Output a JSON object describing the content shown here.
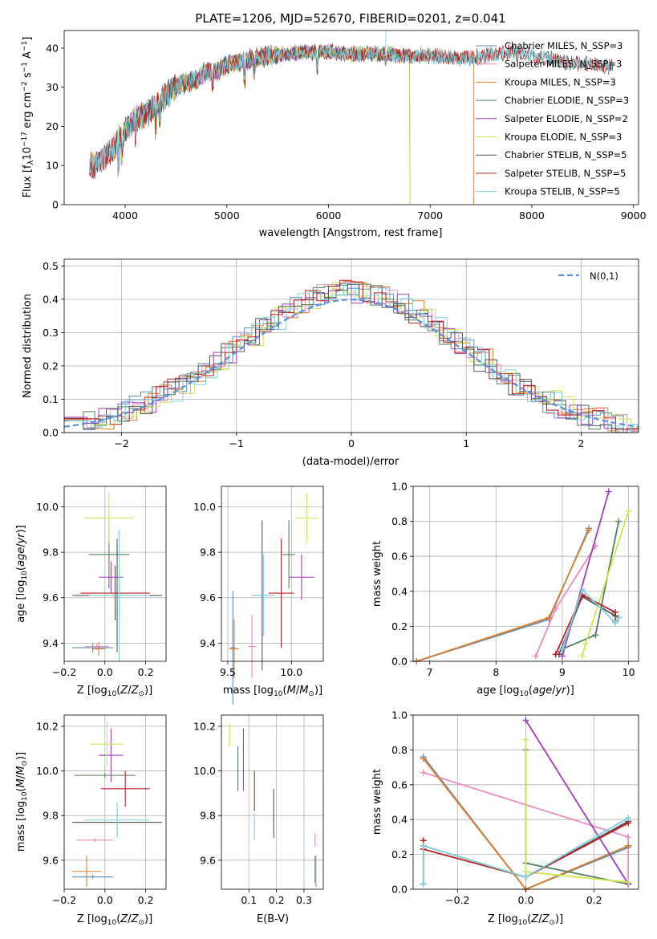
{
  "title": "PLATE=1206, MJD=52670, FIBERID=0201, z=0.041",
  "chart_data": [
    {
      "id": "spectrum",
      "type": "line",
      "xlabel": "wavelength [Angstrom, rest frame]",
      "ylabel": "Flux [f_λ 10^-17 erg cm^-2 s^-1 A^-1]",
      "xlim": [
        3400,
        9050
      ],
      "ylim": [
        0,
        44.5
      ],
      "xticks": [
        4000,
        5000,
        6000,
        7000,
        8000,
        9000
      ],
      "yticks": [
        0,
        10,
        20,
        30,
        40
      ],
      "grid": false,
      "legend_position": "right",
      "series": [
        {
          "name": "Chabrier MILES, N_SSP=3",
          "color": "#5b8db8",
          "x_range": [
            3650,
            7430
          ]
        },
        {
          "name": "Salpeter MILES, N_SSP=3",
          "color": "#e98dc0",
          "x_range": [
            3650,
            7430
          ]
        },
        {
          "name": "Kroupa MILES, N_SSP=3",
          "color": "#dd7f2c",
          "x_range": [
            3650,
            7430
          ]
        },
        {
          "name": "Chabrier ELODIE, N_SSP=3",
          "color": "#4f7f5f",
          "x_range": [
            3900,
            6800
          ]
        },
        {
          "name": "Salpeter ELODIE, N_SSP=2",
          "color": "#9d3fbf",
          "x_range": [
            3900,
            6800
          ]
        },
        {
          "name": "Kroupa ELODIE, N_SSP=3",
          "color": "#cfe551",
          "x_range": [
            3900,
            6800
          ]
        },
        {
          "name": "Chabrier STELIB, N_SSP=5",
          "color": "#555555",
          "x_range": [
            3650,
            8800
          ]
        },
        {
          "name": "Salpeter STELIB, N_SSP=5",
          "color": "#bb1f1f",
          "x_range": [
            3650,
            8800
          ]
        },
        {
          "name": "Kroupa STELIB, N_SSP=5",
          "color": "#7fd3df",
          "x_range": [
            3650,
            8800
          ]
        }
      ],
      "continuum": {
        "x": [
          3650,
          3700,
          3800,
          3900,
          4000,
          4100,
          4200,
          4300,
          4400,
          4500,
          4600,
          4700,
          4800,
          4900,
          5000,
          5200,
          5400,
          5600,
          5800,
          6000,
          6200,
          6400,
          6600,
          6800,
          7000,
          7200,
          7400,
          7600,
          7800,
          8000,
          8200,
          8400,
          8600,
          8800
        ],
        "y": [
          10,
          10,
          12,
          15,
          19,
          22,
          23,
          25,
          28,
          30,
          31,
          32,
          34,
          34,
          36,
          37,
          38,
          38.5,
          39,
          39,
          38.5,
          38.5,
          38.5,
          38,
          38,
          37.5,
          37.5,
          38,
          39,
          38,
          37,
          36,
          36,
          35
        ]
      }
    },
    {
      "id": "residuals",
      "type": "line",
      "xlabel": "(data-model)/error",
      "ylabel": "Normed distribution",
      "xlim": [
        -2.5,
        2.5
      ],
      "ylim": [
        0,
        0.52
      ],
      "xticks": [
        -2,
        -1,
        0,
        1,
        2
      ],
      "yticks": [
        0.0,
        0.1,
        0.2,
        0.3,
        0.4,
        0.5
      ],
      "grid": true,
      "legend_position": "top-right",
      "legend": "N(0,1)",
      "histogram_bin_width": 0.1,
      "histogram_envelope_peak": 0.42
    },
    {
      "id": "age-vs-Z",
      "type": "scatter",
      "xlabel": "Z [log10(Z/Z⊙)]",
      "ylabel": "age [log10(age/yr)]",
      "xlim": [
        -0.2,
        0.3
      ],
      "ylim": [
        9.32,
        10.09
      ],
      "xticks": [
        -0.2,
        0.0,
        0.2
      ],
      "yticks": [
        9.4,
        9.6,
        9.8,
        10.0
      ],
      "grid": true,
      "errorbars": [
        {
          "color": "#5b8db8",
          "x": -0.06,
          "y": 9.38,
          "xerr": 0.1,
          "yerr": 0.02
        },
        {
          "color": "#e98dc0",
          "x": -0.04,
          "y": 9.385,
          "xerr": 0.06,
          "yerr": 0.015
        },
        {
          "color": "#dd7f2c",
          "x": -0.03,
          "y": 9.375,
          "xerr": 0.03,
          "yerr": 0.03
        },
        {
          "color": "#4f7f5f",
          "x": 0.02,
          "y": 9.79,
          "xerr": 0.1,
          "yerr": 0.15
        },
        {
          "color": "#9d3fbf",
          "x": 0.03,
          "y": 9.69,
          "xerr": 0.06,
          "yerr": 0.07
        },
        {
          "color": "#cfe551",
          "x": 0.02,
          "y": 9.95,
          "xerr": 0.12,
          "yerr": 0.11
        },
        {
          "color": "#555555",
          "x": 0.06,
          "y": 9.61,
          "xerr": 0.22,
          "yerr": 0.25
        },
        {
          "color": "#bb1f1f",
          "x": 0.05,
          "y": 9.62,
          "xerr": 0.17,
          "yerr": 0.12
        },
        {
          "color": "#7fd3df",
          "x": 0.07,
          "y": 9.61,
          "xerr": 0.15,
          "yerr": 0.29
        }
      ]
    },
    {
      "id": "age-vs-mass",
      "type": "scatter",
      "xlabel": "mass [log10(M/M⊙)]",
      "xlim": [
        9.45,
        10.25
      ],
      "ylim": [
        9.32,
        10.09
      ],
      "xticks": [
        9.5,
        10.0
      ],
      "yticks": [
        9.4,
        9.6,
        9.8,
        10.0
      ],
      "grid": true,
      "errorbars": [
        {
          "color": "#5b8db8",
          "x": 9.54,
          "y": 9.38,
          "xerr": 0.02,
          "yerr": 0.25
        },
        {
          "color": "#e98dc0",
          "x": 9.69,
          "y": 9.385,
          "xerr": 0.03,
          "yerr": 0.14
        },
        {
          "color": "#dd7f2c",
          "x": 9.55,
          "y": 9.375,
          "xerr": 0.04,
          "yerr": 0.13
        },
        {
          "color": "#4f7f5f",
          "x": 9.98,
          "y": 9.79,
          "xerr": 0.05,
          "yerr": 0.15
        },
        {
          "color": "#9d3fbf",
          "x": 10.08,
          "y": 9.69,
          "xerr": 0.1,
          "yerr": 0.1
        },
        {
          "color": "#cfe551",
          "x": 10.12,
          "y": 9.95,
          "xerr": 0.09,
          "yerr": 0.11
        },
        {
          "color": "#555555",
          "x": 9.77,
          "y": 9.61,
          "xerr": 0.08,
          "yerr": 0.33
        },
        {
          "color": "#bb1f1f",
          "x": 9.92,
          "y": 9.62,
          "xerr": 0.1,
          "yerr": 0.24
        },
        {
          "color": "#7fd3df",
          "x": 9.78,
          "y": 9.61,
          "xerr": 0.09,
          "yerr": 0.18
        }
      ]
    },
    {
      "id": "weight-vs-age",
      "type": "line",
      "xlabel": "age [log10(age/yr)]",
      "ylabel": "mass weight",
      "xlim": [
        6.75,
        10.15
      ],
      "ylim": [
        0,
        1.0
      ],
      "xticks": [
        7,
        8,
        9,
        10
      ],
      "yticks": [
        0.0,
        0.2,
        0.4,
        0.6,
        0.8,
        1.0
      ],
      "grid": true,
      "series": [
        {
          "color": "#5b8db8",
          "x": [
            6.8,
            8.8,
            9.4
          ],
          "y": [
            0.0,
            0.24,
            0.76
          ]
        },
        {
          "color": "#e98dc0",
          "x": [
            8.6,
            8.9,
            9.5
          ],
          "y": [
            0.03,
            0.3,
            0.66
          ]
        },
        {
          "color": "#dd7f2c",
          "x": [
            6.8,
            8.8,
            9.4
          ],
          "y": [
            0.0,
            0.25,
            0.75
          ]
        },
        {
          "color": "#4f7f5f",
          "x": [
            9.0,
            9.5,
            9.85
          ],
          "y": [
            0.07,
            0.15,
            0.8
          ]
        },
        {
          "color": "#9d3fbf",
          "x": [
            9.0,
            9.7
          ],
          "y": [
            0.03,
            0.97
          ]
        },
        {
          "color": "#cfe551",
          "x": [
            9.3,
            9.35,
            10.0
          ],
          "y": [
            0.03,
            0.1,
            0.86
          ]
        },
        {
          "color": "#555555",
          "x": [
            8.95,
            9.3,
            9.8,
            9.85
          ],
          "y": [
            0.04,
            0.37,
            0.26,
            0.25
          ]
        },
        {
          "color": "#bb1f1f",
          "x": [
            8.9,
            9.3,
            9.8,
            9.8
          ],
          "y": [
            0.04,
            0.38,
            0.28,
            0.23
          ]
        },
        {
          "color": "#7fd3df",
          "x": [
            9.0,
            9.3,
            9.8,
            9.85
          ],
          "y": [
            0.07,
            0.41,
            0.22,
            0.25
          ]
        }
      ]
    },
    {
      "id": "mass-vs-Z",
      "type": "scatter",
      "xlabel": "Z [log10(Z/Z⊙)]",
      "ylabel": "mass [log10(M/M⊙)]",
      "xlim": [
        -0.2,
        0.3
      ],
      "ylim": [
        9.47,
        10.25
      ],
      "xticks": [
        -0.2,
        0.0,
        0.2
      ],
      "yticks": [
        9.6,
        9.8,
        10.0,
        10.2
      ],
      "grid": true,
      "errorbars": [
        {
          "color": "#5b8db8",
          "x": -0.06,
          "y": 9.525,
          "xerr": 0.1,
          "yerr": 0.01
        },
        {
          "color": "#e98dc0",
          "x": -0.05,
          "y": 9.69,
          "xerr": 0.09,
          "yerr": 0.01
        },
        {
          "color": "#dd7f2c",
          "x": -0.09,
          "y": 9.55,
          "xerr": 0.07,
          "yerr": 0.07
        },
        {
          "color": "#4f7f5f",
          "x": 0.0,
          "y": 9.98,
          "xerr": 0.15,
          "yerr": 0.01
        },
        {
          "color": "#9d3fbf",
          "x": 0.03,
          "y": 10.07,
          "xerr": 0.06,
          "yerr": 0.12
        },
        {
          "color": "#cfe551",
          "x": 0.01,
          "y": 10.12,
          "xerr": 0.08,
          "yerr": 0.1
        },
        {
          "color": "#555555",
          "x": 0.06,
          "y": 9.77,
          "xerr": 0.22,
          "yerr": 0.06
        },
        {
          "color": "#bb1f1f",
          "x": 0.1,
          "y": 9.92,
          "xerr": 0.12,
          "yerr": 0.08
        },
        {
          "color": "#7fd3df",
          "x": 0.06,
          "y": 9.78,
          "xerr": 0.16,
          "yerr": 0.08
        }
      ]
    },
    {
      "id": "mass-vs-ebv",
      "type": "scatter",
      "xlabel": "E(B-V)",
      "xlim": [
        0.0,
        0.37
      ],
      "ylim": [
        9.47,
        10.25
      ],
      "xticks": [
        0.1,
        0.2,
        0.3
      ],
      "yticks": [
        9.6,
        9.8,
        10.0,
        10.2
      ],
      "grid": true,
      "errorbars": [
        {
          "color": "#5b8db8",
          "x": 0.34,
          "y": 9.56,
          "xerr": 0.0,
          "yerr": 0.06
        },
        {
          "color": "#e98dc0",
          "x": 0.34,
          "y": 9.69,
          "xerr": 0.0,
          "yerr": 0.03
        },
        {
          "color": "#dd7f2c",
          "x": 0.343,
          "y": 9.55,
          "xerr": 0.0,
          "yerr": 0.07
        },
        {
          "color": "#4f7f5f",
          "x": 0.06,
          "y": 10.01,
          "xerr": 0.0,
          "yerr": 0.1
        },
        {
          "color": "#9d3fbf",
          "x": 0.08,
          "y": 10.05,
          "xerr": 0.0,
          "yerr": 0.14
        },
        {
          "color": "#cfe551",
          "x": 0.03,
          "y": 10.16,
          "xerr": 0.0,
          "yerr": 0.05
        },
        {
          "color": "#555555",
          "x": 0.19,
          "y": 9.81,
          "xerr": 0.0,
          "yerr": 0.11
        },
        {
          "color": "#bb1f1f",
          "x": 0.12,
          "y": 9.91,
          "xerr": 0.0,
          "yerr": 0.09
        },
        {
          "color": "#7fd3df",
          "x": 0.12,
          "y": 9.75,
          "xerr": 0.0,
          "yerr": 0.06
        }
      ]
    },
    {
      "id": "weight-vs-Z",
      "type": "line",
      "xlabel": "Z [log10(Z/Z⊙)]",
      "ylabel": "mass weight",
      "xlim": [
        -0.33,
        0.33
      ],
      "ylim": [
        0,
        1.0
      ],
      "xticks": [
        -0.2,
        0.0,
        0.2
      ],
      "yticks": [
        0.0,
        0.2,
        0.4,
        0.6,
        0.8,
        1.0
      ],
      "grid": true,
      "series": [
        {
          "color": "#5b8db8",
          "x": [
            -0.3,
            0.0,
            0.3
          ],
          "y": [
            0.76,
            0.0,
            0.24
          ]
        },
        {
          "color": "#e98dc0",
          "x": [
            -0.3,
            0.3,
            0.3
          ],
          "y": [
            0.67,
            0.3,
            0.03
          ]
        },
        {
          "color": "#dd7f2c",
          "x": [
            -0.3,
            0.0,
            0.3
          ],
          "y": [
            0.75,
            0.0,
            0.25
          ]
        },
        {
          "color": "#4f7f5f",
          "x": [
            0.0,
            0.0,
            0.3
          ],
          "y": [
            0.8,
            0.15,
            0.03
          ]
        },
        {
          "color": "#9d3fbf",
          "x": [
            0.0,
            0.3
          ],
          "y": [
            0.97,
            0.03
          ]
        },
        {
          "color": "#cfe551",
          "x": [
            0.0,
            0.0,
            0.3
          ],
          "y": [
            0.86,
            0.1,
            0.04
          ]
        },
        {
          "color": "#555555",
          "x": [
            -0.3,
            -0.3,
            0.0,
            0.3
          ],
          "y": [
            0.03,
            0.25,
            0.07,
            0.39
          ]
        },
        {
          "color": "#bb1f1f",
          "x": [
            -0.3,
            -0.3,
            0.0,
            0.3
          ],
          "y": [
            0.28,
            0.23,
            0.07,
            0.38
          ]
        },
        {
          "color": "#7fd3df",
          "x": [
            -0.3,
            -0.3,
            0.0,
            0.3
          ],
          "y": [
            0.03,
            0.25,
            0.07,
            0.41
          ]
        }
      ]
    }
  ]
}
